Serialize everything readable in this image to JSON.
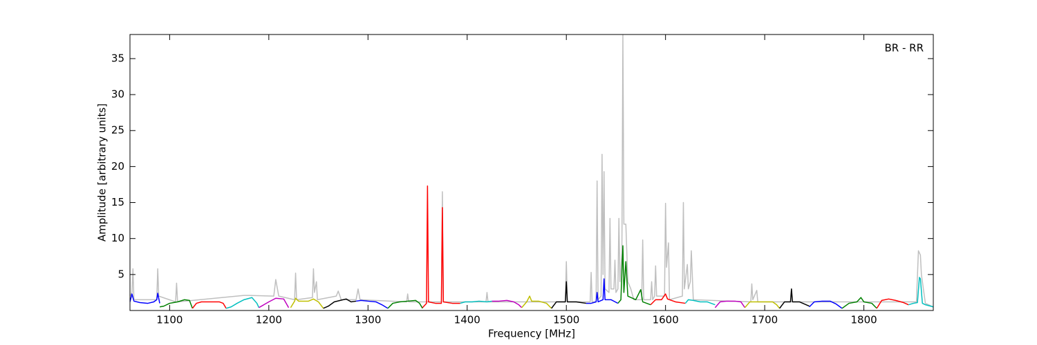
{
  "chart_data": {
    "type": "line",
    "annotation": "BR - RR",
    "x_label": "Frequency [MHz]",
    "y_label": "Amplitude [arbitrary units]",
    "xlim": [
      1060,
      1870
    ],
    "xticks": [
      1100,
      1200,
      1300,
      1400,
      1500,
      1600,
      1700,
      1800
    ],
    "ylim": [
      0,
      38.35
    ],
    "yticks": [
      5,
      10,
      15,
      20,
      25,
      30,
      35
    ],
    "grid": false,
    "series": [
      {
        "color": "#bfbfbf",
        "x": [
          1060,
          1062,
          1063,
          1064,
          1087,
          1088,
          1089,
          1106,
          1107,
          1108,
          1175,
          1180,
          1205,
          1207,
          1210,
          1226,
          1227,
          1228,
          1244,
          1245,
          1246,
          1248,
          1249,
          1268,
          1270,
          1273,
          1288,
          1290,
          1292,
          1339,
          1340,
          1341,
          1374,
          1375,
          1376,
          1419,
          1420,
          1421,
          1499,
          1500,
          1501,
          1524,
          1525,
          1526,
          1530,
          1531,
          1532,
          1535,
          1536,
          1537,
          1538,
          1539,
          1543,
          1544,
          1545,
          1548,
          1549,
          1550,
          1552,
          1553,
          1554,
          1556,
          1557,
          1558,
          1560,
          1562,
          1565,
          1568,
          1576,
          1577,
          1578,
          1585,
          1586,
          1587,
          1589,
          1590,
          1591,
          1599,
          1600,
          1601,
          1603,
          1604,
          1617,
          1618,
          1619,
          1622,
          1623,
          1625,
          1626,
          1628,
          1686,
          1687,
          1688,
          1692,
          1693,
          1853,
          1855,
          1857,
          1858,
          1862,
          1870
        ],
        "values": [
          2.0,
          2.5,
          5.8,
          1.5,
          1.5,
          5.8,
          2.0,
          1.2,
          3.8,
          1.2,
          2.1,
          2.1,
          2.0,
          4.3,
          2.0,
          1.5,
          5.2,
          1.5,
          1.8,
          5.8,
          2.5,
          4.0,
          1.5,
          2.0,
          2.7,
          1.5,
          1.5,
          3.0,
          1.5,
          1.2,
          2.3,
          1.2,
          1.2,
          16.5,
          1.2,
          1.2,
          2.5,
          1.2,
          1.2,
          6.8,
          1.2,
          1.2,
          5.3,
          1.2,
          1.2,
          18.0,
          1.5,
          2.0,
          21.7,
          5.0,
          19.3,
          3.0,
          2.5,
          12.8,
          3.0,
          3.0,
          7.0,
          2.5,
          3.0,
          12.8,
          4.0,
          8.0,
          38.3,
          12.0,
          12.0,
          4.0,
          3.0,
          1.5,
          1.5,
          9.8,
          1.5,
          1.5,
          4.0,
          1.5,
          2.0,
          6.2,
          2.0,
          2.0,
          14.9,
          6.0,
          9.4,
          1.5,
          2.0,
          15.0,
          3.0,
          6.4,
          3.0,
          4.0,
          8.3,
          1.5,
          1.2,
          3.7,
          1.5,
          2.8,
          1.2,
          1.2,
          8.3,
          7.7,
          5.0,
          1.0,
          0.5
        ]
      },
      {
        "color": "#0000ff",
        "x": [
          1060,
          1062,
          1064,
          1070,
          1078,
          1084,
          1087,
          1088,
          1090
        ],
        "values": [
          1.2,
          2.3,
          1.3,
          1.1,
          1.0,
          1.2,
          1.5,
          2.4,
          1.0
        ]
      },
      {
        "color": "#008000",
        "x": [
          1090,
          1094,
          1100,
          1108,
          1115,
          1120,
          1123
        ],
        "values": [
          0.5,
          0.6,
          1.0,
          1.2,
          1.5,
          1.4,
          0.3
        ]
      },
      {
        "color": "#ff0000",
        "x": [
          1123,
          1127,
          1132,
          1140,
          1150,
          1154,
          1157
        ],
        "values": [
          0.3,
          1.0,
          1.2,
          1.2,
          1.2,
          1.0,
          0.3
        ]
      },
      {
        "color": "#00bfbf",
        "x": [
          1157,
          1162,
          1168,
          1175,
          1183,
          1188,
          1190
        ],
        "values": [
          0.3,
          0.5,
          1.0,
          1.5,
          1.8,
          1.0,
          0.4
        ]
      },
      {
        "color": "#bf00bf",
        "x": [
          1190,
          1195,
          1200,
          1207,
          1215,
          1220
        ],
        "values": [
          0.4,
          0.8,
          1.2,
          1.7,
          1.6,
          0.4
        ]
      },
      {
        "color": "#bfbf00",
        "x": [
          1222,
          1226,
          1227,
          1230,
          1240,
          1245,
          1250,
          1255
        ],
        "values": [
          0.4,
          1.3,
          1.7,
          1.3,
          1.3,
          1.6,
          1.2,
          0.3
        ]
      },
      {
        "color": "#000000",
        "x": [
          1255,
          1260,
          1266,
          1272,
          1278,
          1283,
          1288
        ],
        "values": [
          0.3,
          0.6,
          1.2,
          1.4,
          1.6,
          1.2,
          1.3
        ]
      },
      {
        "color": "#0000ff",
        "x": [
          1288,
          1293,
          1300,
          1308,
          1314,
          1320
        ],
        "values": [
          1.3,
          1.4,
          1.3,
          1.2,
          0.8,
          0.3
        ]
      },
      {
        "color": "#008000",
        "x": [
          1320,
          1325,
          1332,
          1340,
          1348,
          1352,
          1355
        ],
        "values": [
          0.3,
          1.0,
          1.2,
          1.3,
          1.4,
          1.0,
          0.3
        ]
      },
      {
        "color": "#ff0000",
        "x": [
          1355,
          1359,
          1360,
          1361,
          1368,
          1374,
          1375,
          1376,
          1385,
          1393
        ],
        "values": [
          0.4,
          1.0,
          17.3,
          1.2,
          1.0,
          1.0,
          14.3,
          1.2,
          1.0,
          1.0
        ]
      },
      {
        "color": "#00bfbf",
        "x": [
          1393,
          1398,
          1405,
          1412,
          1420,
          1425
        ],
        "values": [
          1.0,
          1.2,
          1.2,
          1.3,
          1.2,
          1.3
        ]
      },
      {
        "color": "#bf00bf",
        "x": [
          1425,
          1432,
          1440,
          1447,
          1452,
          1455
        ],
        "values": [
          1.3,
          1.3,
          1.4,
          1.2,
          0.8,
          0.4
        ]
      },
      {
        "color": "#bfbf00",
        "x": [
          1455,
          1460,
          1463,
          1465,
          1472,
          1480,
          1485
        ],
        "values": [
          0.4,
          1.2,
          2.0,
          1.3,
          1.3,
          1.0,
          0.3
        ]
      },
      {
        "color": "#000000",
        "x": [
          1485,
          1490,
          1499,
          1500,
          1501,
          1510,
          1520
        ],
        "values": [
          0.3,
          1.2,
          1.2,
          4.0,
          1.2,
          1.2,
          1.0
        ]
      },
      {
        "color": "#0000ff",
        "x": [
          1520,
          1525,
          1530,
          1531,
          1532,
          1537,
          1538,
          1539,
          1545,
          1552
        ],
        "values": [
          1.0,
          1.0,
          1.2,
          2.5,
          1.2,
          1.5,
          4.4,
          1.5,
          1.5,
          1.0
        ]
      },
      {
        "color": "#008000",
        "x": [
          1552,
          1555,
          1557,
          1558,
          1560,
          1562,
          1570,
          1575,
          1577,
          1585
        ],
        "values": [
          1.0,
          1.5,
          9.0,
          2.5,
          6.8,
          2.0,
          1.5,
          2.9,
          1.2,
          0.8
        ]
      },
      {
        "color": "#ff0000",
        "x": [
          1585,
          1590,
          1596,
          1600,
          1602,
          1610,
          1620
        ],
        "values": [
          0.8,
          1.5,
          1.5,
          2.3,
          1.6,
          1.2,
          1.0
        ]
      },
      {
        "color": "#00bfbf",
        "x": [
          1620,
          1623,
          1628,
          1635,
          1642,
          1650
        ],
        "values": [
          1.0,
          1.5,
          1.4,
          1.2,
          1.2,
          0.8
        ]
      },
      {
        "color": "#bf00bf",
        "x": [
          1650,
          1655,
          1662,
          1670,
          1676,
          1680
        ],
        "values": [
          0.4,
          1.2,
          1.3,
          1.3,
          1.2,
          0.4
        ]
      },
      {
        "color": "#bfbf00",
        "x": [
          1680,
          1685,
          1692,
          1700,
          1708,
          1712,
          1715
        ],
        "values": [
          0.4,
          1.2,
          1.2,
          1.2,
          1.2,
          0.8,
          0.3
        ]
      },
      {
        "color": "#000000",
        "x": [
          1715,
          1720,
          1726,
          1727,
          1728,
          1735,
          1745
        ],
        "values": [
          0.3,
          1.2,
          1.2,
          3.0,
          1.2,
          1.2,
          0.6
        ]
      },
      {
        "color": "#0000ff",
        "x": [
          1745,
          1750,
          1758,
          1766,
          1772,
          1778
        ],
        "values": [
          0.5,
          1.2,
          1.3,
          1.3,
          0.9,
          0.3
        ]
      },
      {
        "color": "#008000",
        "x": [
          1778,
          1785,
          1793,
          1797,
          1800,
          1808,
          1813
        ],
        "values": [
          0.3,
          1.0,
          1.2,
          1.8,
          1.2,
          1.0,
          0.3
        ]
      },
      {
        "color": "#ff0000",
        "x": [
          1813,
          1818,
          1825,
          1832,
          1840,
          1845
        ],
        "values": [
          0.3,
          1.4,
          1.6,
          1.4,
          1.1,
          0.8
        ]
      },
      {
        "color": "#00bfbf",
        "x": [
          1845,
          1850,
          1854,
          1856,
          1857,
          1859,
          1862,
          1870
        ],
        "values": [
          0.8,
          1.0,
          1.1,
          4.6,
          4.4,
          1.0,
          0.8,
          0.5
        ]
      }
    ]
  }
}
